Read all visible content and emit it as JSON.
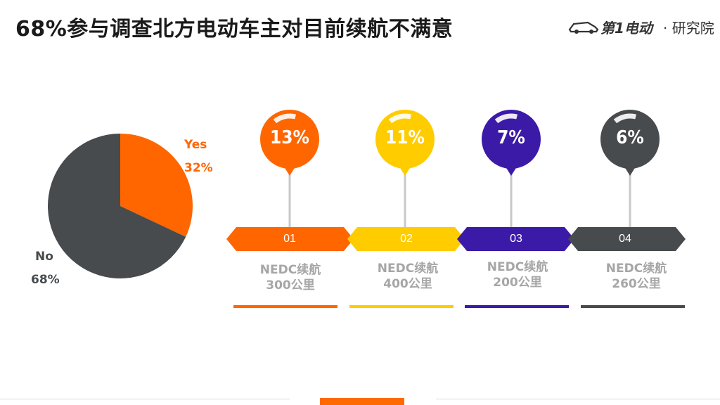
{
  "header": {
    "title": "68%参与调查北方电动车主对目前续航不满意",
    "brand_name": "第1电动",
    "brand_suffix": "研究院"
  },
  "colors": {
    "orange": "#ff6600",
    "yellow": "#ffcc00",
    "purple": "#3c1aa8",
    "gray": "#474b4e",
    "stem": "#c8c8c8",
    "desc_text": "#a6a6a6"
  },
  "chart_data": [
    {
      "type": "pie",
      "slices": [
        {
          "label": "Yes",
          "value": 32,
          "display": "32%",
          "color": "#ff6600"
        },
        {
          "label": "No",
          "value": 68,
          "display": "68%",
          "color": "#474b4e"
        }
      ]
    },
    {
      "type": "bar",
      "categories": [
        "NEDC续航 300公里",
        "NEDC续航 400公里",
        "NEDC续航 200公里",
        "NEDC续航 260公里"
      ],
      "values": [
        13,
        11,
        7,
        6
      ],
      "labels": [
        "13%",
        "11%",
        "7%",
        "6%"
      ]
    }
  ],
  "steps": [
    {
      "num": "01",
      "line1": "NEDC续航",
      "line2": "300公里",
      "pct": "13%",
      "color": "#ff6600"
    },
    {
      "num": "02",
      "line1": "NEDC续航",
      "line2": "400公里",
      "pct": "11%",
      "color": "#ffcc00"
    },
    {
      "num": "03",
      "line1": "NEDC续航",
      "line2": "200公里",
      "pct": "7%",
      "color": "#3c1aa8"
    },
    {
      "num": "04",
      "line1": "NEDC续航",
      "line2": "260公里",
      "pct": "6%",
      "color": "#474b4e"
    }
  ]
}
